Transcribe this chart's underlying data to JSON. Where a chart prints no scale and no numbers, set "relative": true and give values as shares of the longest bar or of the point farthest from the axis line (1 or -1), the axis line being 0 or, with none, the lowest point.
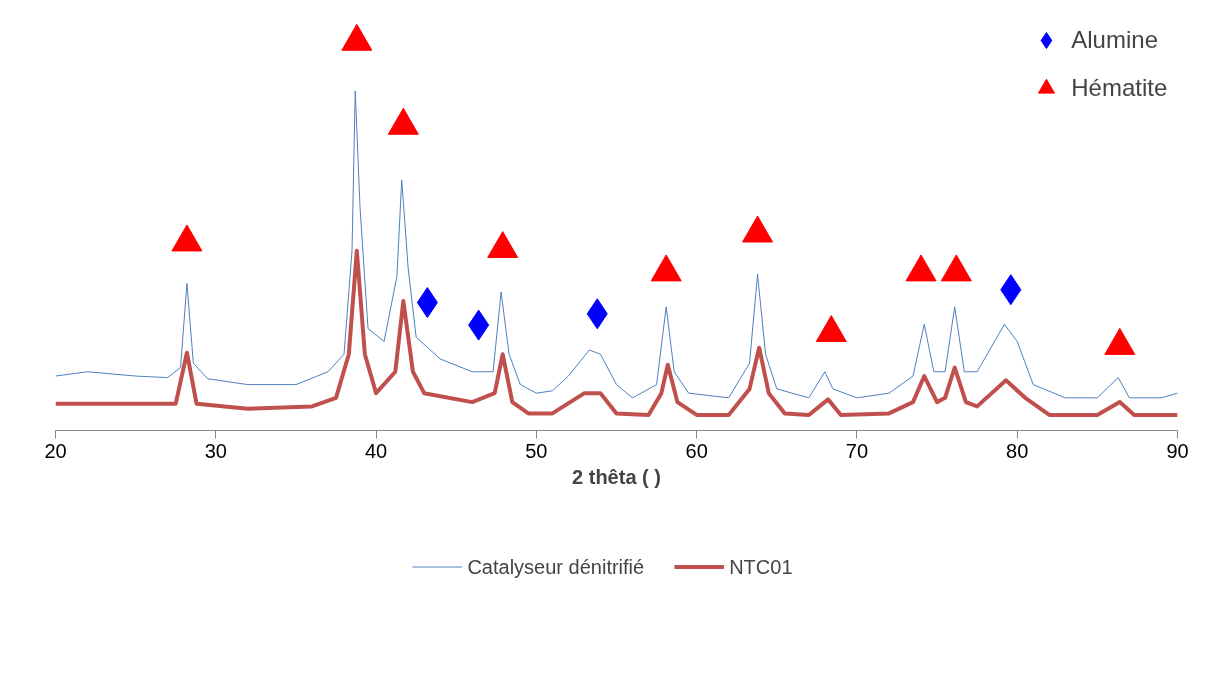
{
  "chart_data": {
    "type": "line",
    "relative": true,
    "xlabel": "2 thêta ( )",
    "xlim": [
      20,
      90
    ],
    "xticks": [
      20,
      30,
      40,
      50,
      60,
      70,
      80,
      90
    ],
    "tick_labels": "x",
    "grid": false,
    "legend": "bottom",
    "series": [
      {
        "name": "Catalyseur dénitrifié",
        "color": "#4f81bd",
        "x": [
          20,
          22,
          25,
          27,
          27.8,
          28.2,
          28.6,
          29.5,
          32,
          35,
          37,
          38,
          38.5,
          38.7,
          39.0,
          39.5,
          40.5,
          41.3,
          41.6,
          42,
          42.5,
          44,
          46,
          47.3,
          47.8,
          48.3,
          49,
          50,
          51,
          52,
          53.3,
          54,
          55,
          56,
          57.5,
          58.1,
          58.6,
          59.5,
          62,
          63.3,
          63.8,
          64.3,
          65,
          67,
          68,
          68.5,
          70,
          72,
          73.5,
          74.2,
          74.8,
          75.5,
          76.1,
          76.7,
          77.5,
          79.2,
          80,
          81,
          83,
          85,
          86.3,
          87,
          89,
          90
        ],
        "values": [
          0.14,
          0.151,
          0.14,
          0.136,
          0.162,
          0.378,
          0.173,
          0.133,
          0.118,
          0.118,
          0.151,
          0.196,
          0.462,
          0.873,
          0.573,
          0.262,
          0.229,
          0.396,
          0.644,
          0.418,
          0.24,
          0.184,
          0.151,
          0.151,
          0.356,
          0.196,
          0.118,
          0.096,
          0.102,
          0.14,
          0.207,
          0.196,
          0.118,
          0.084,
          0.118,
          0.318,
          0.151,
          0.096,
          0.084,
          0.173,
          0.402,
          0.196,
          0.107,
          0.084,
          0.151,
          0.107,
          0.084,
          0.096,
          0.14,
          0.273,
          0.151,
          0.151,
          0.318,
          0.151,
          0.151,
          0.273,
          0.229,
          0.118,
          0.084,
          0.084,
          0.136,
          0.084,
          0.084,
          0.096
        ]
      },
      {
        "name": "NTC01",
        "color": "#c0504d",
        "x": [
          20,
          25,
          27.5,
          28.2,
          28.8,
          32,
          36,
          37.5,
          38.3,
          38.8,
          39.3,
          40,
          41.2,
          41.7,
          42.3,
          43,
          46,
          47.4,
          47.9,
          48.5,
          49.5,
          51,
          53,
          54,
          55,
          57,
          57.8,
          58.2,
          58.8,
          60,
          62,
          63.3,
          63.9,
          64.5,
          65.5,
          67,
          68.2,
          69,
          72,
          73.5,
          74.2,
          75,
          75.5,
          76.1,
          76.8,
          77.5,
          79.3,
          80.5,
          82,
          85,
          86.4,
          87.3,
          90
        ],
        "values": [
          0.069,
          0.069,
          0.069,
          0.2,
          0.069,
          0.056,
          0.062,
          0.084,
          0.196,
          0.462,
          0.196,
          0.096,
          0.151,
          0.333,
          0.151,
          0.096,
          0.073,
          0.096,
          0.196,
          0.073,
          0.044,
          0.044,
          0.096,
          0.096,
          0.044,
          0.04,
          0.096,
          0.169,
          0.073,
          0.04,
          0.04,
          0.107,
          0.213,
          0.096,
          0.044,
          0.04,
          0.08,
          0.04,
          0.044,
          0.073,
          0.14,
          0.073,
          0.084,
          0.162,
          0.073,
          0.062,
          0.129,
          0.084,
          0.04,
          0.04,
          0.073,
          0.04,
          0.04
        ]
      },
      {
        "name": "Alumine",
        "type": "scatter",
        "marker": "diamond",
        "color": "#0000ff",
        "x": [
          43.2,
          46.4,
          53.8,
          79.6
        ],
        "values": [
          0.329,
          0.271,
          0.3,
          0.362
        ]
      },
      {
        "name": "Hématite",
        "type": "scatter",
        "marker": "triangle",
        "color": "#ff0000",
        "x": [
          28.2,
          38.8,
          41.7,
          47.9,
          58.1,
          63.8,
          68.4,
          74.0,
          76.2,
          86.4
        ],
        "values": [
          0.484,
          1.0,
          0.784,
          0.467,
          0.407,
          0.507,
          0.251,
          0.407,
          0.407,
          0.218
        ]
      }
    ]
  }
}
